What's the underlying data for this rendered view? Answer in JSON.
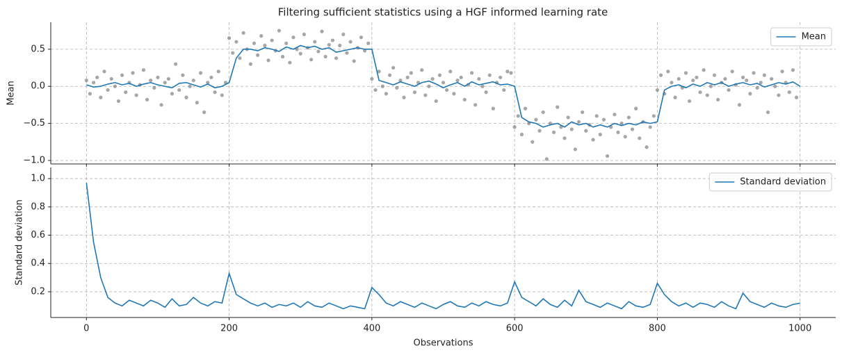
{
  "chart_data": [
    {
      "type": "line",
      "title": "Filtering sufficient statistics using a HGF informed learning rate",
      "ylabel": "Mean",
      "xlim": [
        -50,
        1050
      ],
      "ylim": [
        -1.047,
        0.864
      ],
      "xticks": [
        0,
        200,
        400,
        600,
        800,
        1000
      ],
      "sharex": true,
      "yticks": [
        {
          "value": -1.0,
          "label": "−1.0"
        },
        {
          "value": -0.5,
          "label": "−0.5"
        },
        {
          "value": 0.0,
          "label": "0.0"
        },
        {
          "value": 0.5,
          "label": "0.5"
        }
      ],
      "grid": true,
      "legend": "upper right",
      "points": {
        "color": "#808080",
        "x": [
          0,
          5,
          10,
          15,
          20,
          25,
          30,
          35,
          40,
          45,
          50,
          55,
          60,
          65,
          70,
          75,
          80,
          85,
          90,
          95,
          100,
          105,
          110,
          115,
          120,
          125,
          130,
          135,
          140,
          145,
          150,
          155,
          160,
          165,
          170,
          175,
          180,
          185,
          190,
          195,
          200,
          205,
          210,
          215,
          220,
          225,
          230,
          235,
          240,
          245,
          250,
          255,
          260,
          265,
          270,
          275,
          280,
          285,
          290,
          295,
          300,
          305,
          310,
          315,
          320,
          325,
          330,
          335,
          340,
          345,
          350,
          355,
          360,
          365,
          370,
          375,
          380,
          385,
          390,
          395,
          400,
          405,
          410,
          415,
          420,
          425,
          430,
          435,
          440,
          445,
          450,
          455,
          460,
          465,
          470,
          475,
          480,
          485,
          490,
          495,
          500,
          505,
          510,
          515,
          520,
          525,
          530,
          535,
          540,
          545,
          550,
          555,
          560,
          565,
          570,
          575,
          580,
          585,
          590,
          595,
          600,
          605,
          610,
          615,
          620,
          625,
          630,
          635,
          640,
          645,
          650,
          655,
          660,
          665,
          670,
          675,
          680,
          685,
          690,
          695,
          700,
          705,
          710,
          715,
          720,
          725,
          730,
          735,
          740,
          745,
          750,
          755,
          760,
          765,
          770,
          775,
          780,
          785,
          790,
          795,
          800,
          805,
          810,
          815,
          820,
          825,
          830,
          835,
          840,
          845,
          850,
          855,
          860,
          865,
          870,
          875,
          880,
          885,
          890,
          895,
          900,
          905,
          910,
          915,
          920,
          925,
          930,
          935,
          940,
          945,
          950,
          955,
          960,
          965,
          970,
          975,
          980,
          985,
          990,
          995
        ],
        "values": [
          0.08,
          -0.1,
          0.05,
          0.12,
          -0.15,
          0.2,
          -0.05,
          0.1,
          0.0,
          -0.2,
          0.15,
          -0.08,
          0.05,
          0.18,
          -0.12,
          0.02,
          0.22,
          -0.18,
          0.08,
          -0.02,
          0.12,
          -0.25,
          0.05,
          0.1,
          -0.1,
          0.3,
          -0.05,
          0.15,
          -0.15,
          0.0,
          0.08,
          -0.22,
          0.18,
          -0.35,
          0.05,
          0.12,
          -0.08,
          0.2,
          -0.12,
          0.05,
          0.65,
          0.45,
          0.6,
          0.38,
          0.72,
          0.5,
          0.3,
          0.58,
          0.42,
          0.68,
          0.55,
          0.35,
          0.62,
          0.48,
          0.75,
          0.4,
          0.58,
          0.32,
          0.66,
          0.5,
          0.44,
          0.7,
          0.52,
          0.36,
          0.6,
          0.47,
          0.74,
          0.4,
          0.56,
          0.62,
          0.38,
          0.55,
          0.7,
          0.45,
          0.6,
          0.34,
          0.52,
          0.66,
          0.48,
          0.58,
          0.1,
          -0.05,
          0.2,
          0.0,
          -0.1,
          0.15,
          0.25,
          -0.02,
          0.08,
          -0.15,
          0.12,
          0.18,
          -0.08,
          0.05,
          0.22,
          -0.12,
          0.0,
          0.1,
          -0.2,
          0.15,
          0.05,
          -0.05,
          0.2,
          -0.1,
          0.08,
          0.12,
          -0.18,
          0.02,
          0.18,
          -0.25,
          0.1,
          0.0,
          -0.08,
          0.15,
          -0.3,
          0.05,
          0.12,
          -0.05,
          0.2,
          0.18,
          -0.55,
          -0.4,
          -0.65,
          -0.3,
          -0.5,
          -0.75,
          -0.45,
          -0.6,
          -0.35,
          -0.98,
          -0.5,
          -0.62,
          -0.28,
          -0.55,
          -0.7,
          -0.42,
          -0.58,
          -0.85,
          -0.48,
          -0.35,
          -0.6,
          -0.52,
          -0.72,
          -0.4,
          -0.65,
          -0.45,
          -0.94,
          -0.55,
          -0.38,
          -0.62,
          -0.5,
          -0.68,
          -0.42,
          -0.58,
          -0.3,
          -0.7,
          -0.48,
          -0.82,
          -0.55,
          -0.4,
          -0.05,
          0.15,
          -0.1,
          0.2,
          0.05,
          -0.15,
          0.1,
          -0.02,
          0.18,
          -0.2,
          0.08,
          0.12,
          -0.08,
          0.22,
          -0.12,
          0.0,
          0.15,
          -0.18,
          0.05,
          0.1,
          -0.05,
          0.2,
          0.02,
          -0.25,
          0.12,
          0.08,
          -0.1,
          0.18,
          -0.02,
          0.05,
          0.15,
          -0.35,
          0.1,
          0.0,
          -0.12,
          0.2,
          0.05,
          -0.08,
          0.22,
          -0.15
        ]
      },
      "series": [
        {
          "name": "Mean",
          "color": "#1f77b4",
          "x": [
            0,
            10,
            20,
            30,
            40,
            50,
            60,
            70,
            80,
            90,
            100,
            110,
            120,
            130,
            140,
            150,
            160,
            170,
            180,
            190,
            200,
            210,
            220,
            230,
            240,
            250,
            260,
            270,
            280,
            290,
            300,
            310,
            320,
            330,
            340,
            350,
            360,
            370,
            380,
            390,
            400,
            410,
            420,
            430,
            440,
            450,
            460,
            470,
            480,
            490,
            500,
            510,
            520,
            530,
            540,
            550,
            560,
            570,
            580,
            590,
            600,
            610,
            620,
            630,
            640,
            650,
            660,
            670,
            680,
            690,
            700,
            710,
            720,
            730,
            740,
            750,
            760,
            770,
            780,
            790,
            800,
            810,
            820,
            830,
            840,
            850,
            860,
            870,
            880,
            890,
            900,
            910,
            920,
            930,
            940,
            950,
            960,
            970,
            980,
            990,
            1000
          ],
          "values": [
            0.02,
            -0.01,
            0.0,
            0.03,
            0.05,
            0.02,
            0.04,
            0.0,
            0.03,
            0.05,
            0.02,
            0.0,
            -0.02,
            0.04,
            0.05,
            0.02,
            -0.01,
            0.03,
            -0.02,
            0.0,
            0.05,
            0.38,
            0.5,
            0.5,
            0.48,
            0.52,
            0.5,
            0.47,
            0.53,
            0.5,
            0.55,
            0.52,
            0.54,
            0.5,
            0.52,
            0.46,
            0.48,
            0.5,
            0.52,
            0.5,
            0.5,
            0.08,
            0.05,
            0.02,
            0.06,
            0.03,
            0.0,
            0.05,
            0.07,
            0.03,
            -0.02,
            0.02,
            0.05,
            0.0,
            0.06,
            0.02,
            0.04,
            0.06,
            0.02,
            0.03,
            0.0,
            -0.42,
            -0.48,
            -0.5,
            -0.55,
            -0.52,
            -0.5,
            -0.55,
            -0.48,
            -0.52,
            -0.5,
            -0.55,
            -0.52,
            -0.55,
            -0.5,
            -0.53,
            -0.5,
            -0.52,
            -0.48,
            -0.5,
            -0.48,
            -0.05,
            0.0,
            0.02,
            -0.02,
            0.03,
            0.0,
            0.05,
            0.02,
            0.05,
            0.0,
            0.03,
            0.05,
            0.02,
            0.04,
            -0.01,
            0.02,
            0.05,
            0.03,
            0.06,
            0.0
          ]
        }
      ]
    },
    {
      "type": "line",
      "xlabel": "Observations",
      "ylabel": "Standard deviation",
      "xlim": [
        -50,
        1050
      ],
      "ylim": [
        0.018,
        1.079
      ],
      "xticks": [
        0,
        200,
        400,
        600,
        800,
        1000
      ],
      "yticks": [
        0.2,
        0.4,
        0.6,
        0.8,
        {
          "value": 1.0,
          "label": "1.0"
        }
      ],
      "grid": true,
      "legend": "upper right",
      "series": [
        {
          "name": "Standard deviation",
          "color": "#1f77b4",
          "x": [
            0,
            10,
            20,
            30,
            40,
            50,
            60,
            70,
            80,
            90,
            100,
            110,
            120,
            130,
            140,
            150,
            160,
            170,
            180,
            190,
            200,
            210,
            220,
            230,
            240,
            250,
            260,
            270,
            280,
            290,
            300,
            310,
            320,
            330,
            340,
            350,
            360,
            370,
            380,
            390,
            400,
            410,
            420,
            430,
            440,
            450,
            460,
            470,
            480,
            490,
            500,
            510,
            520,
            530,
            540,
            550,
            560,
            570,
            580,
            590,
            600,
            610,
            620,
            630,
            640,
            650,
            660,
            670,
            680,
            690,
            700,
            710,
            720,
            730,
            740,
            750,
            760,
            770,
            780,
            790,
            800,
            810,
            820,
            830,
            840,
            850,
            860,
            870,
            880,
            890,
            900,
            910,
            920,
            930,
            940,
            950,
            960,
            970,
            980,
            990,
            1000
          ],
          "values": [
            0.97,
            0.55,
            0.3,
            0.16,
            0.12,
            0.1,
            0.14,
            0.12,
            0.1,
            0.14,
            0.12,
            0.09,
            0.15,
            0.1,
            0.11,
            0.16,
            0.12,
            0.1,
            0.13,
            0.12,
            0.33,
            0.18,
            0.15,
            0.12,
            0.1,
            0.12,
            0.09,
            0.11,
            0.1,
            0.12,
            0.09,
            0.13,
            0.1,
            0.09,
            0.12,
            0.1,
            0.08,
            0.1,
            0.09,
            0.08,
            0.23,
            0.18,
            0.12,
            0.1,
            0.13,
            0.11,
            0.09,
            0.12,
            0.1,
            0.08,
            0.11,
            0.13,
            0.1,
            0.09,
            0.12,
            0.1,
            0.13,
            0.11,
            0.1,
            0.12,
            0.27,
            0.16,
            0.13,
            0.1,
            0.15,
            0.11,
            0.09,
            0.14,
            0.1,
            0.21,
            0.13,
            0.11,
            0.09,
            0.12,
            0.1,
            0.08,
            0.13,
            0.1,
            0.09,
            0.11,
            0.26,
            0.18,
            0.13,
            0.1,
            0.12,
            0.09,
            0.12,
            0.11,
            0.09,
            0.13,
            0.1,
            0.08,
            0.19,
            0.13,
            0.11,
            0.09,
            0.12,
            0.1,
            0.09,
            0.11,
            0.12
          ]
        }
      ]
    }
  ]
}
